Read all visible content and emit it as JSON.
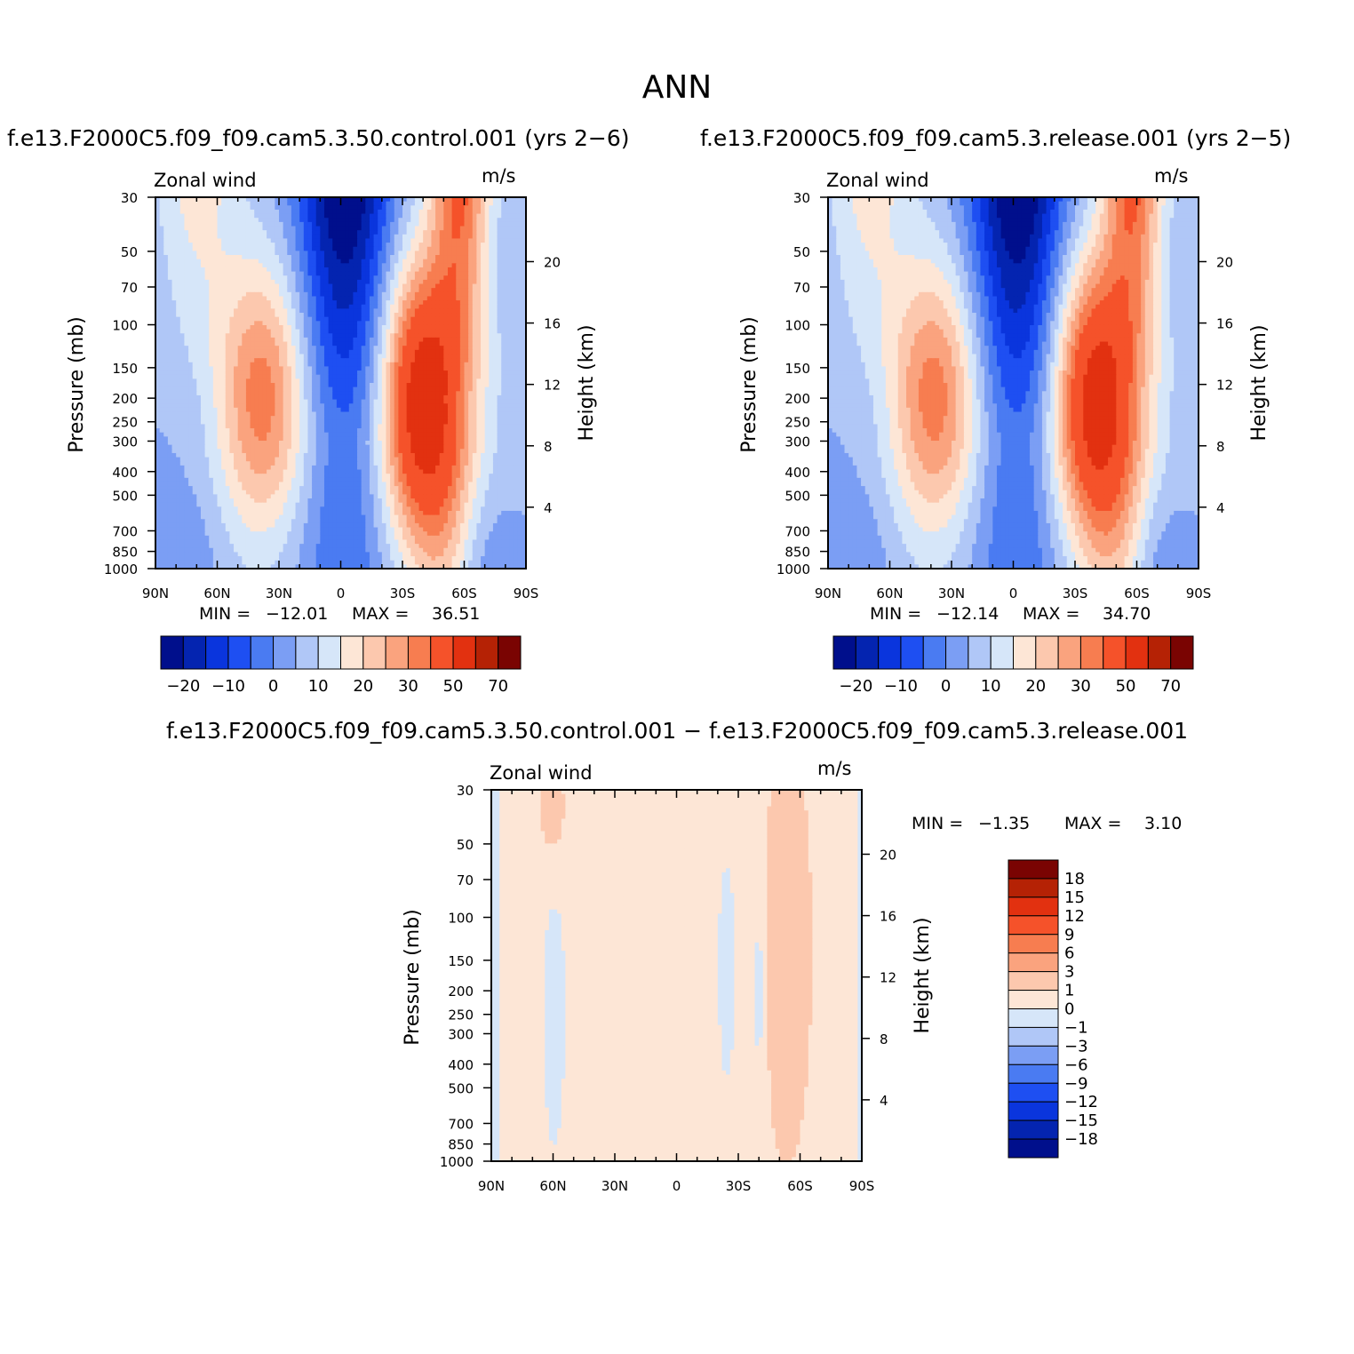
{
  "main_title": "ANN",
  "panels": [
    {
      "title": "f.e13.F2000C5.f09_f09.cam5.3.50.control.001 (yrs 2−6)",
      "variable_label": "Zonal wind",
      "units": "m/s",
      "min_label": "MIN",
      "max_label": "MAX",
      "min_value": "−12.01",
      "max_value": "36.51"
    },
    {
      "title": "f.e13.F2000C5.f09_f09.cam5.3.release.001 (yrs 2−5)",
      "variable_label": "Zonal wind",
      "units": "m/s",
      "min_label": "MIN",
      "max_label": "MAX",
      "min_value": "−12.14",
      "max_value": "34.70"
    },
    {
      "title": "f.e13.F2000C5.f09_f09.cam5.3.50.control.001 − f.e13.F2000C5.f09_f09.cam5.3.release.001",
      "variable_label": "Zonal wind",
      "units": "m/s",
      "min_label": "MIN",
      "max_label": "MAX",
      "min_value": "−1.35",
      "max_value": "3.10"
    }
  ],
  "chart_data": [
    {
      "type": "heatmap",
      "title": "f.e13.F2000C5.f09_f09.cam5.3.50.control.001 (yrs 2−6)",
      "xlabel": "",
      "ylabel": "Pressure (mb)",
      "ylabel_right": "Height (km)",
      "x_ticks": [
        "90N",
        "60N",
        "30N",
        "0",
        "30S",
        "60S",
        "90S"
      ],
      "x_range": [
        -90,
        90
      ],
      "y_ticks": [
        30,
        50,
        70,
        100,
        150,
        200,
        250,
        300,
        400,
        500,
        700,
        850,
        1000
      ],
      "y_range": [
        30,
        1000
      ],
      "y_scale": "log",
      "y_right_ticks": [
        4,
        8,
        12,
        16,
        20
      ],
      "color_levels": [
        -25,
        -20,
        -15,
        -10,
        -5,
        0,
        5,
        10,
        15,
        20,
        25,
        30,
        40,
        50,
        60,
        70
      ],
      "colorbar_labels": [
        "−20",
        "−10",
        "0",
        "10",
        "20",
        "30",
        "50",
        "70"
      ],
      "colorbar_colors": [
        "#000f8c",
        "#0424b0",
        "#0a35dd",
        "#1e4ff2",
        "#4a7bf2",
        "#7b9ef4",
        "#b0c7f7",
        "#d6e6f9",
        "#fde6d6",
        "#fcc8ae",
        "#faa37e",
        "#f77d50",
        "#f5522a",
        "#e23110",
        "#b52205",
        "#7a0402"
      ],
      "min": -12.01,
      "max": 36.51
    },
    {
      "type": "heatmap",
      "title": "f.e13.F2000C5.f09_f09.cam5.3.release.001 (yrs 2−5)",
      "xlabel": "",
      "ylabel": "Pressure (mb)",
      "ylabel_right": "Height (km)",
      "x_ticks": [
        "90N",
        "60N",
        "30N",
        "0",
        "30S",
        "60S",
        "90S"
      ],
      "x_range": [
        -90,
        90
      ],
      "y_ticks": [
        30,
        50,
        70,
        100,
        150,
        200,
        250,
        300,
        400,
        500,
        700,
        850,
        1000
      ],
      "y_range": [
        30,
        1000
      ],
      "y_scale": "log",
      "y_right_ticks": [
        4,
        8,
        12,
        16,
        20
      ],
      "color_levels": [
        -25,
        -20,
        -15,
        -10,
        -5,
        0,
        5,
        10,
        15,
        20,
        25,
        30,
        40,
        50,
        60,
        70
      ],
      "colorbar_labels": [
        "−20",
        "−10",
        "0",
        "10",
        "20",
        "30",
        "50",
        "70"
      ],
      "colorbar_colors": [
        "#000f8c",
        "#0424b0",
        "#0a35dd",
        "#1e4ff2",
        "#4a7bf2",
        "#7b9ef4",
        "#b0c7f7",
        "#d6e6f9",
        "#fde6d6",
        "#fcc8ae",
        "#faa37e",
        "#f77d50",
        "#f5522a",
        "#e23110",
        "#b52205",
        "#7a0402"
      ],
      "min": -12.14,
      "max": 34.7
    },
    {
      "type": "heatmap",
      "title": "f.e13.F2000C5.f09_f09.cam5.3.50.control.001 − f.e13.F2000C5.f09_f09.cam5.3.release.001",
      "xlabel": "",
      "ylabel": "Pressure (mb)",
      "ylabel_right": "Height (km)",
      "x_ticks": [
        "90N",
        "60N",
        "30N",
        "0",
        "30S",
        "60S",
        "90S"
      ],
      "x_range": [
        -90,
        90
      ],
      "y_ticks": [
        30,
        50,
        70,
        100,
        150,
        200,
        250,
        300,
        400,
        500,
        700,
        850,
        1000
      ],
      "y_range": [
        30,
        1000
      ],
      "y_scale": "log",
      "y_right_ticks": [
        4,
        8,
        12,
        16,
        20
      ],
      "color_levels": [
        -18,
        -15,
        -12,
        -9,
        -6,
        -3,
        -1,
        0,
        1,
        3,
        6,
        9,
        12,
        15,
        18
      ],
      "colorbar_labels": [
        "18",
        "15",
        "12",
        "9",
        "6",
        "3",
        "1",
        "0",
        "−1",
        "−3",
        "−6",
        "−9",
        "−12",
        "−15",
        "−18"
      ],
      "colorbar_colors": [
        "#7a0402",
        "#b52205",
        "#e23110",
        "#f5522a",
        "#f77d50",
        "#faa37e",
        "#fcc8ae",
        "#fde6d6",
        "#d6e6f9",
        "#b0c7f7",
        "#7b9ef4",
        "#4a7bf2",
        "#1e4ff2",
        "#0a35dd",
        "#0424b0",
        "#000f8c"
      ],
      "min": -1.35,
      "max": 3.1
    }
  ]
}
